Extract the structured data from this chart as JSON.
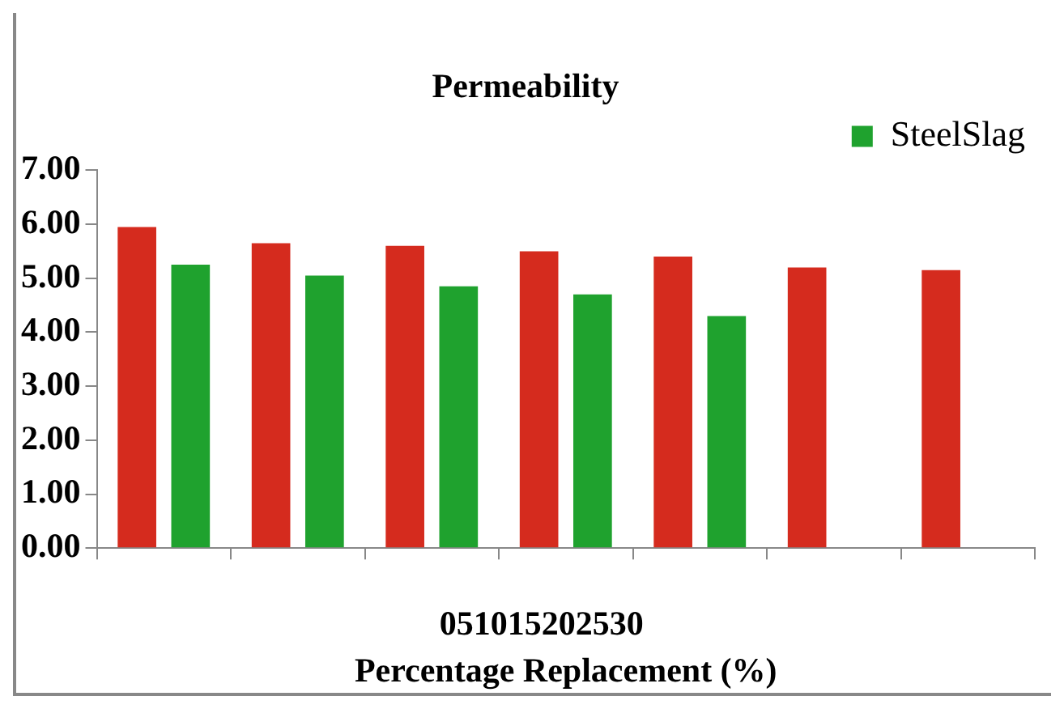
{
  "chart_data": {
    "type": "bar",
    "title": "Permeability",
    "xlabel": "Percentage Replacement (%)",
    "categories": [
      null,
      null,
      null,
      null,
      null,
      null,
      null
    ],
    "series": [
      {
        "color": "#d52b1e",
        "values": [
          5.95,
          5.65,
          5.6,
          5.5,
          5.4,
          5.2,
          5.15
        ]
      },
      {
        "name": "SteelSlag",
        "color": "#1fa22e",
        "values": [
          5.25,
          5.05,
          4.85,
          4.7,
          4.3,
          null,
          null
        ]
      }
    ],
    "ylim": [
      0,
      7
    ],
    "yticks": [
      {
        "value": 0,
        "label": "0.00"
      },
      {
        "value": 1,
        "label": "1.00"
      },
      {
        "value": 2,
        "label": "2.00"
      },
      {
        "value": 3,
        "label": "3.00"
      },
      {
        "value": 4,
        "label": "4.00"
      },
      {
        "value": 5,
        "label": "5.00"
      },
      {
        "value": 6,
        "label": "6.00"
      },
      {
        "value": 7,
        "label": "7.00"
      }
    ],
    "annotations": [
      "051015202530"
    ],
    "legend": "top right",
    "grid": false
  }
}
